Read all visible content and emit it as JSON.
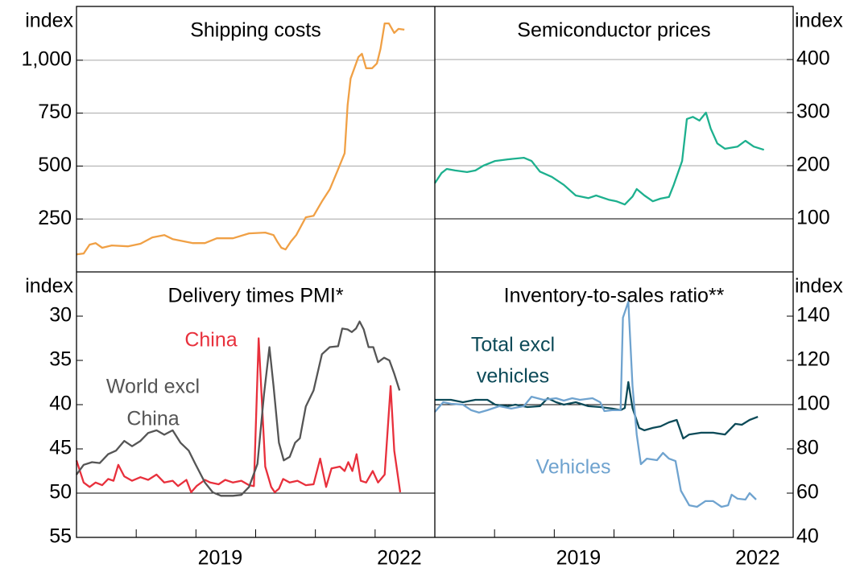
{
  "chart_data": [
    {
      "type": "line",
      "title": "Shipping costs",
      "ylabel": "index",
      "ylim": [
        0,
        1254
      ],
      "yticks": [
        250,
        500,
        750,
        {
          "value": 1000,
          "label": "1,000"
        }
      ],
      "grid": true,
      "xlim": [
        2017,
        2023
      ],
      "series": [
        {
          "color": "#f0a045",
          "x": [
            2017.0,
            2017.12,
            2017.22,
            2017.32,
            2017.43,
            2017.59,
            2017.86,
            2018.07,
            2018.27,
            2018.47,
            2018.61,
            2018.95,
            2019.15,
            2019.35,
            2019.62,
            2019.89,
            2020.16,
            2020.3,
            2020.36,
            2020.43,
            2020.5,
            2020.59,
            2020.68,
            2020.84,
            2020.97,
            2021.11,
            2021.24,
            2021.38,
            2021.49,
            2021.54,
            2021.59,
            2021.72,
            2021.78,
            2021.85,
            2021.95,
            2022.03,
            2022.09,
            2022.16,
            2022.23,
            2022.32,
            2022.39,
            2022.49
          ],
          "values": [
            83,
            87,
            129,
            136,
            114,
            125,
            121,
            133,
            163,
            174,
            155,
            136,
            136,
            159,
            159,
            182,
            186,
            174,
            144,
            114,
            106,
            144,
            174,
            258,
            265,
            333,
            390,
            485,
            561,
            788,
            913,
            1015,
            1030,
            962,
            962,
            985,
            1053,
            1174,
            1174,
            1129,
            1148,
            1144
          ]
        }
      ]
    },
    {
      "type": "line",
      "title": "Semiconductor prices",
      "ylabel": "index",
      "ylim": [
        0,
        500
      ],
      "yticks": [
        100,
        200,
        300,
        400
      ],
      "grid": true,
      "hline": 100,
      "xlim": [
        2017,
        2023
      ],
      "series": [
        {
          "color": "#1db08e",
          "x": [
            2017.0,
            2017.11,
            2017.2,
            2017.34,
            2017.54,
            2017.68,
            2017.81,
            2018.01,
            2018.22,
            2018.49,
            2018.62,
            2018.76,
            2018.96,
            2019.16,
            2019.36,
            2019.57,
            2019.7,
            2019.91,
            2020.04,
            2020.18,
            2020.31,
            2020.38,
            2020.51,
            2020.65,
            2020.78,
            2020.92,
            2021.0,
            2021.14,
            2021.22,
            2021.32,
            2021.43,
            2021.54,
            2021.62,
            2021.73,
            2021.86,
            2022.07,
            2022.2,
            2022.34,
            2022.51
          ],
          "values": [
            167,
            186,
            194,
            191,
            188,
            191,
            200,
            209,
            212,
            215,
            209,
            189,
            179,
            164,
            144,
            139,
            144,
            136,
            133,
            127,
            142,
            156,
            144,
            133,
            138,
            141,
            164,
            209,
            288,
            292,
            285,
            300,
            270,
            242,
            232,
            236,
            247,
            236,
            230
          ]
        }
      ]
    },
    {
      "type": "line",
      "title": "Delivery times PMI*",
      "ylabel": "index",
      "ylim": [
        55,
        25
      ],
      "yticks": [
        30,
        35,
        40,
        45,
        50,
        55
      ],
      "grid": false,
      "hline": 50,
      "xlim": [
        2017,
        2023
      ],
      "xticks": [
        2018,
        2019,
        2020,
        2021,
        2022
      ],
      "xlabels": [
        {
          "value": 2019.5,
          "label": "2019"
        },
        {
          "value": 2022.5,
          "label": "2022"
        }
      ],
      "series": [
        {
          "color": "#e8303c",
          "label": [
            "China"
          ],
          "x": [
            2017.0,
            2017.12,
            2017.22,
            2017.32,
            2017.43,
            2017.53,
            2017.62,
            2017.7,
            2017.8,
            2017.93,
            2018.07,
            2018.2,
            2018.34,
            2018.47,
            2018.61,
            2018.7,
            2018.84,
            2018.92,
            2019.01,
            2019.15,
            2019.24,
            2019.38,
            2019.49,
            2019.62,
            2019.76,
            2019.89,
            2019.97,
            2020.05,
            2020.16,
            2020.26,
            2020.32,
            2020.39,
            2020.46,
            2020.57,
            2020.7,
            2020.84,
            2020.97,
            2021.08,
            2021.18,
            2021.27,
            2021.41,
            2021.49,
            2021.55,
            2021.62,
            2021.69,
            2021.76,
            2021.85,
            2021.96,
            2022.05,
            2022.16,
            2022.26,
            2022.32,
            2022.42
          ],
          "values": [
            46.3,
            48.8,
            49.3,
            48.8,
            49.1,
            48.4,
            48.6,
            46.8,
            48.1,
            48.6,
            48.2,
            48.5,
            47.9,
            48.8,
            48.6,
            49.2,
            48.5,
            49.9,
            49.2,
            48.5,
            48.8,
            49.0,
            48.5,
            48.8,
            48.6,
            49.1,
            49.2,
            32.5,
            47.0,
            49.3,
            49.9,
            49.5,
            48.4,
            48.8,
            48.6,
            49.1,
            49.0,
            46.1,
            49.3,
            47.2,
            47.0,
            47.5,
            46.5,
            47.5,
            45.6,
            48.6,
            48.8,
            47.5,
            48.8,
            47.9,
            37.9,
            45.2,
            49.9
          ]
        },
        {
          "color": "#555555",
          "label": [
            "World excl",
            "China"
          ],
          "x": [
            2017.0,
            2017.12,
            2017.26,
            2017.39,
            2017.53,
            2017.66,
            2017.8,
            2017.93,
            2018.07,
            2018.2,
            2018.34,
            2018.47,
            2018.61,
            2018.74,
            2018.88,
            2018.99,
            2019.15,
            2019.28,
            2019.42,
            2019.62,
            2019.76,
            2019.89,
            2020.03,
            2020.14,
            2020.23,
            2020.3,
            2020.39,
            2020.47,
            2020.57,
            2020.66,
            2020.74,
            2020.84,
            2020.97,
            2021.11,
            2021.24,
            2021.38,
            2021.45,
            2021.54,
            2021.61,
            2021.68,
            2021.74,
            2021.81,
            2021.89,
            2021.97,
            2022.05,
            2022.15,
            2022.24,
            2022.32,
            2022.41
          ],
          "values": [
            47.9,
            46.8,
            46.5,
            46.6,
            45.6,
            45.2,
            44.1,
            44.7,
            44.1,
            43.2,
            42.9,
            43.4,
            42.9,
            44.3,
            45.2,
            46.7,
            48.8,
            49.9,
            50.3,
            50.3,
            50.2,
            49.3,
            46.7,
            38.8,
            33.5,
            37.9,
            44.3,
            46.3,
            45.9,
            44.3,
            43.8,
            40.2,
            38.4,
            34.3,
            33.5,
            33.4,
            31.4,
            31.5,
            31.8,
            31.4,
            30.6,
            31.5,
            33.5,
            33.5,
            35.2,
            34.7,
            35.0,
            36.5,
            38.4
          ]
        }
      ]
    },
    {
      "type": "line",
      "title": "Inventory-to-sales ratio**",
      "ylabel": "index",
      "ylim": [
        40,
        160
      ],
      "yticks": [
        40,
        60,
        80,
        100,
        120,
        140
      ],
      "grid": false,
      "hline": 100,
      "xlim": [
        2017,
        2023
      ],
      "xticks": [
        2018,
        2019,
        2020,
        2021,
        2022
      ],
      "xlabels": [
        {
          "value": 2019.5,
          "label": "2019"
        },
        {
          "value": 2022.5,
          "label": "2022"
        }
      ],
      "series": [
        {
          "color": "#0c4a58",
          "label": [
            "Total excl",
            "vehicles"
          ],
          "x": [
            2017.0,
            2017.27,
            2017.47,
            2017.68,
            2017.88,
            2018.01,
            2018.22,
            2018.35,
            2018.55,
            2018.76,
            2018.89,
            2019.03,
            2019.16,
            2019.36,
            2019.57,
            2019.77,
            2019.97,
            2020.11,
            2020.18,
            2020.24,
            2020.31,
            2020.42,
            2020.51,
            2020.65,
            2020.78,
            2020.92,
            2021.05,
            2021.16,
            2021.26,
            2021.46,
            2021.66,
            2021.86,
            2022.03,
            2022.14,
            2022.27,
            2022.41
          ],
          "values": [
            102.2,
            102.2,
            101.1,
            102.2,
            102.2,
            100.0,
            99.3,
            100.0,
            98.9,
            99.3,
            102.9,
            101.1,
            100.0,
            101.1,
            99.3,
            98.9,
            98.2,
            97.5,
            98.5,
            110.2,
            98.5,
            89.5,
            88.4,
            89.5,
            90.2,
            92.0,
            93.1,
            84.7,
            86.5,
            87.3,
            87.3,
            86.5,
            91.3,
            90.9,
            93.1,
            94.5
          ]
        },
        {
          "color": "#6fa3cf",
          "label": [
            "Vehicles"
          ],
          "x": [
            2017.0,
            2017.14,
            2017.27,
            2017.47,
            2017.61,
            2017.74,
            2017.88,
            2018.08,
            2018.28,
            2018.49,
            2018.62,
            2018.82,
            2019.03,
            2019.16,
            2019.3,
            2019.43,
            2019.64,
            2019.77,
            2019.84,
            2019.97,
            2020.11,
            2020.15,
            2020.24,
            2020.31,
            2020.38,
            2020.45,
            2020.55,
            2020.72,
            2020.82,
            2020.92,
            2021.03,
            2021.12,
            2021.26,
            2021.39,
            2021.53,
            2021.66,
            2021.8,
            2021.91,
            2021.97,
            2022.07,
            2022.2,
            2022.27,
            2022.38
          ],
          "values": [
            96.7,
            101.1,
            100.4,
            100.0,
            97.5,
            96.4,
            97.5,
            99.3,
            98.2,
            99.3,
            103.6,
            102.2,
            102.9,
            101.8,
            102.9,
            102.2,
            102.9,
            101.1,
            97.1,
            97.5,
            97.5,
            139.3,
            146.5,
            108.4,
            86.5,
            73.1,
            75.6,
            74.9,
            78.2,
            75.6,
            74.5,
            61.1,
            54.5,
            53.8,
            56.4,
            56.4,
            53.8,
            54.5,
            59.3,
            57.5,
            57.1,
            60.0,
            57.1
          ]
        }
      ]
    }
  ]
}
